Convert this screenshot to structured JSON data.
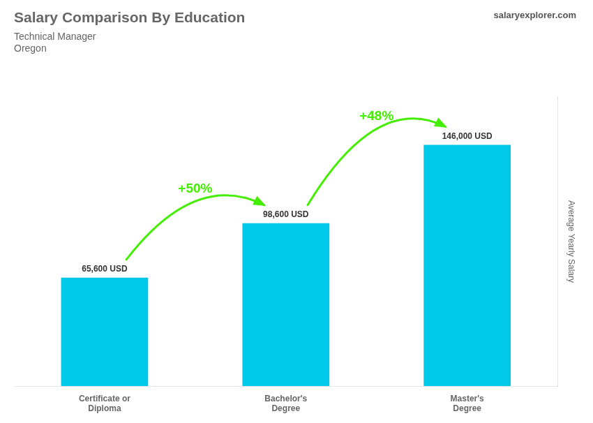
{
  "chart_data": {
    "type": "bar",
    "title": "Salary Comparison By Education",
    "subtitle": [
      "Technical Manager",
      "Oregon"
    ],
    "categories": [
      "Certificate or\nDiploma",
      "Bachelor's\nDegree",
      "Master's\nDegree"
    ],
    "values": [
      65600,
      98600,
      146000
    ],
    "value_labels": [
      "65,600 USD",
      "98,600 USD",
      "146,000 USD"
    ],
    "data_labels": true,
    "color": "#00c8e8",
    "ylabel": "Average Yearly Salary",
    "ylim": [
      0,
      175000
    ],
    "tick_labels": "x",
    "grid": false,
    "annotations": [
      {
        "text": "+50%",
        "from": "Certificate or\nDiploma",
        "to": "Bachelor's\nDegree",
        "color": "#44ee00"
      },
      {
        "text": "+48%",
        "from": "Bachelor's\nDegree",
        "to": "Master's\nDegree",
        "color": "#44ee00"
      },
      {
        "text": "salaryexplorer.com"
      }
    ]
  }
}
